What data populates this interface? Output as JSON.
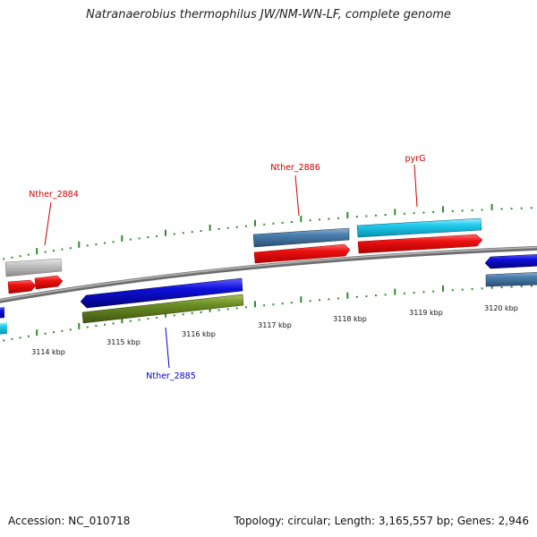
{
  "title": "Natranaerobius thermophilus JW/NM-WN-LF, complete genome",
  "footer": {
    "accession": "Accession: NC_010718",
    "summary": "Topology: circular; Length: 3,165,557 bp; Genes: 2,946"
  },
  "ticks": {
    "inner": [
      "3114 kbp",
      "3115 kbp",
      "3116 kbp",
      "3117 kbp",
      "3118 kbp",
      "3119 kbp",
      "3120 kbp"
    ]
  },
  "gene_labels": [
    {
      "id": "Nther_2884",
      "text": "Nther_2884",
      "color": "#cc0000"
    },
    {
      "id": "Nther_2886",
      "text": "Nther_2886",
      "color": "#cc0000"
    },
    {
      "id": "pyrG",
      "text": "pyrG",
      "color": "#cc0000"
    },
    {
      "id": "Nther_2885",
      "text": "Nther_2885",
      "color": "#0000cc"
    }
  ],
  "colors": {
    "backbone": "#8a8a8a",
    "tick": "#2e8b2e",
    "red": "#ee1111",
    "blue": "#1010dd",
    "steelblue": "#4a7faf",
    "cyan": "#22ccee",
    "gray": "#c0c0c0",
    "olive": "#6b8e23"
  }
}
